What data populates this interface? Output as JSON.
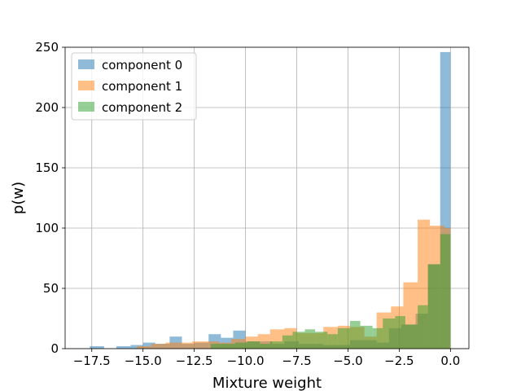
{
  "chart_data": {
    "type": "histogram",
    "xlabel": "Mixture weight",
    "ylabel": "p(w)",
    "xlim": [
      -18.8,
      0.9
    ],
    "ylim": [
      0,
      250
    ],
    "grid": true,
    "legend_position": "top-left",
    "x_ticks": [
      -17.5,
      -15.0,
      -12.5,
      -10.0,
      -7.5,
      -5.0,
      -2.5,
      0.0
    ],
    "x_tick_labels": [
      "−17.5",
      "−15.0",
      "−12.5",
      "−10.0",
      "−7.5",
      "−5.0",
      "−2.5",
      "0.0"
    ],
    "y_ticks": [
      0,
      50,
      100,
      150,
      200,
      250
    ],
    "y_tick_labels": [
      "0",
      "50",
      "100",
      "150",
      "200",
      "250"
    ],
    "series": [
      {
        "name": "component 0",
        "color": "#1f77b4",
        "opacity": 0.5,
        "bins": [
          [
            -17.6,
            -16.9,
            2
          ],
          [
            -16.3,
            -15.6,
            2
          ],
          [
            -15.6,
            -15.0,
            3
          ],
          [
            -15.0,
            -14.4,
            5
          ],
          [
            -14.4,
            -13.7,
            4
          ],
          [
            -13.7,
            -13.1,
            10
          ],
          [
            -13.1,
            -12.5,
            4
          ],
          [
            -12.5,
            -11.8,
            5
          ],
          [
            -11.8,
            -11.2,
            12
          ],
          [
            -11.2,
            -10.6,
            9
          ],
          [
            -10.6,
            -10.0,
            15
          ],
          [
            -10.0,
            -9.3,
            6
          ],
          [
            -9.3,
            -8.7,
            6
          ],
          [
            -8.7,
            -8.1,
            4
          ],
          [
            -8.1,
            -7.4,
            6
          ],
          [
            -7.4,
            -6.8,
            4
          ],
          [
            -6.8,
            -6.2,
            4
          ],
          [
            -6.2,
            -5.5,
            3
          ],
          [
            -5.5,
            -4.9,
            3
          ],
          [
            -4.9,
            -4.3,
            7
          ],
          [
            -4.3,
            -3.6,
            7
          ],
          [
            -3.6,
            -3.0,
            5
          ],
          [
            -3.0,
            -2.4,
            17
          ],
          [
            -2.4,
            -1.7,
            20
          ],
          [
            -1.7,
            -1.1,
            29
          ],
          [
            -1.1,
            -0.5,
            70
          ],
          [
            -0.5,
            0.0,
            246
          ]
        ]
      },
      {
        "name": "component 1",
        "color": "#ff7f0e",
        "opacity": 0.5,
        "bins": [
          [
            -15.3,
            -14.6,
            2
          ],
          [
            -14.6,
            -13.9,
            4
          ],
          [
            -13.9,
            -13.3,
            5
          ],
          [
            -13.3,
            -12.6,
            5
          ],
          [
            -12.6,
            -12.0,
            6
          ],
          [
            -12.0,
            -11.3,
            6
          ],
          [
            -11.3,
            -10.7,
            5
          ],
          [
            -10.7,
            -10.0,
            8
          ],
          [
            -10.0,
            -9.4,
            10
          ],
          [
            -9.4,
            -8.8,
            12
          ],
          [
            -8.8,
            -8.1,
            16
          ],
          [
            -8.1,
            -7.5,
            17
          ],
          [
            -7.5,
            -6.8,
            13
          ],
          [
            -6.8,
            -6.2,
            13
          ],
          [
            -6.2,
            -5.5,
            18
          ],
          [
            -5.5,
            -4.9,
            19
          ],
          [
            -4.9,
            -4.2,
            18
          ],
          [
            -4.2,
            -3.6,
            10
          ],
          [
            -3.6,
            -2.9,
            30
          ],
          [
            -2.9,
            -2.3,
            35
          ],
          [
            -2.3,
            -1.6,
            55
          ],
          [
            -1.6,
            -1.0,
            107
          ],
          [
            -1.0,
            -0.3,
            102
          ],
          [
            -0.3,
            0.0,
            100
          ]
        ]
      },
      {
        "name": "component 2",
        "color": "#2ca02c",
        "opacity": 0.5,
        "bins": [
          [
            -11.7,
            -10.5,
            4
          ],
          [
            -10.5,
            -9.9,
            5
          ],
          [
            -9.9,
            -9.3,
            6
          ],
          [
            -9.3,
            -8.8,
            4
          ],
          [
            -8.8,
            -8.2,
            6
          ],
          [
            -8.2,
            -7.7,
            11
          ],
          [
            -7.7,
            -7.1,
            14
          ],
          [
            -7.1,
            -6.6,
            16
          ],
          [
            -6.6,
            -6.0,
            14
          ],
          [
            -6.0,
            -5.5,
            12
          ],
          [
            -5.5,
            -4.9,
            17
          ],
          [
            -4.9,
            -4.4,
            23
          ],
          [
            -4.4,
            -3.8,
            19
          ],
          [
            -3.8,
            -3.3,
            17
          ],
          [
            -3.3,
            -2.7,
            25
          ],
          [
            -2.7,
            -2.2,
            27
          ],
          [
            -2.2,
            -1.6,
            20
          ],
          [
            -1.6,
            -1.1,
            36
          ],
          [
            -1.1,
            -0.5,
            70
          ],
          [
            -0.5,
            0.0,
            95
          ]
        ]
      }
    ]
  }
}
